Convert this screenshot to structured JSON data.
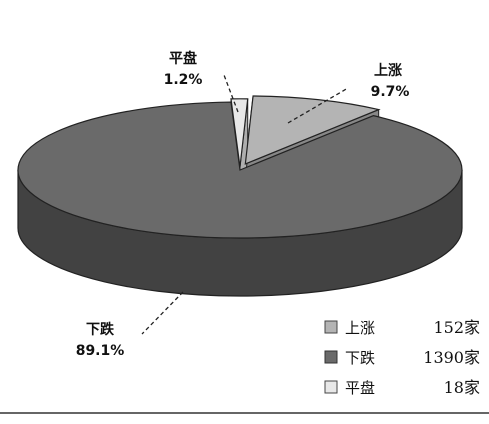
{
  "chart_data": {
    "type": "pie",
    "style": "3d-exploded",
    "title": "",
    "slices": [
      {
        "label": "上涨",
        "percent_label": "9.7%",
        "value": 9.7,
        "legend_label": "上涨",
        "count_label": "152家",
        "color": "#b4b4b4"
      },
      {
        "label": "下跌",
        "percent_label": "89.1%",
        "value": 89.1,
        "legend_label": "下跌",
        "count_label": "1390家",
        "color": "#6a6a6a"
      },
      {
        "label": "平盘",
        "percent_label": "1.2%",
        "value": 1.2,
        "legend_label": "平盘",
        "count_label": "18家",
        "color": "#e8e8e8"
      }
    ],
    "legend_position": "bottom-right"
  }
}
